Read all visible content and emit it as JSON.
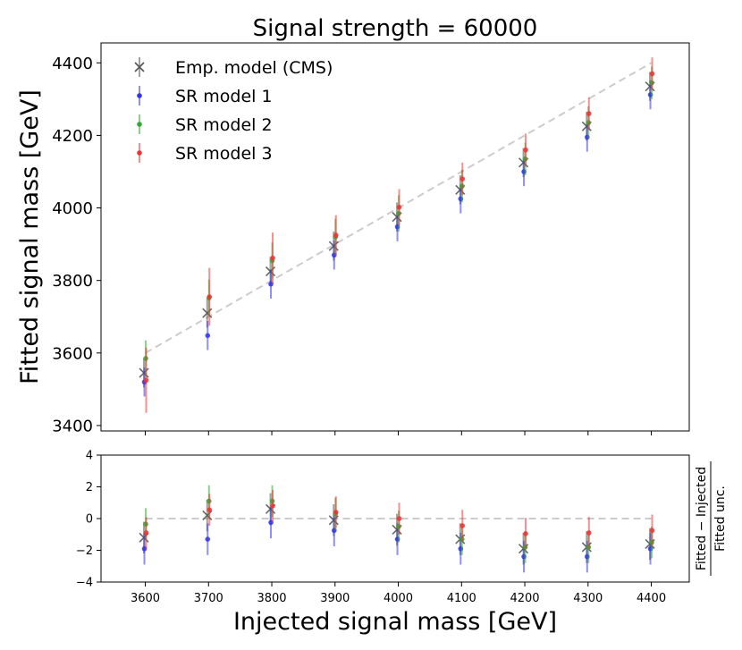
{
  "title": "Signal strength = 60000",
  "colors": {
    "cms": "#555555",
    "sr1": "#3333ee",
    "sr2": "#33aa33",
    "sr3": "#ee3333",
    "ideal": "#cccccc"
  },
  "chart_data": [
    {
      "id": "main",
      "type": "scatter",
      "title": "Signal strength = 60000",
      "xlabel": "",
      "ylabel": "Fitted signal mass [GeV]",
      "xlim": [
        3530,
        4460
      ],
      "ylim": [
        3385,
        4455
      ],
      "xticks": [
        3600,
        3700,
        3800,
        3900,
        4000,
        4100,
        4200,
        4300,
        4400
      ],
      "yticks": [
        3400,
        3600,
        3800,
        4000,
        4200,
        4400
      ],
      "yticklabels": [
        "3400",
        "3600",
        "3800",
        "4000",
        "4200",
        "4400"
      ],
      "legend_position": "top-left",
      "reference_line": {
        "x": [
          3600,
          4400
        ],
        "y": [
          3600,
          4400
        ]
      },
      "x": [
        3600,
        3700,
        3800,
        3900,
        4000,
        4100,
        4200,
        4300,
        4400
      ],
      "series": [
        {
          "name": "Emp. model (CMS)",
          "marker": "x",
          "color_key": "cms",
          "values": [
            3545,
            3710,
            3825,
            3895,
            3975,
            4050,
            4125,
            4225,
            4335
          ],
          "errors": [
            40,
            40,
            40,
            40,
            40,
            40,
            40,
            40,
            40
          ]
        },
        {
          "name": "SR model 1",
          "marker": "o",
          "color_key": "sr1",
          "values": [
            3520,
            3648,
            3790,
            3870,
            3948,
            4025,
            4100,
            4195,
            4312
          ],
          "errors": [
            40,
            40,
            40,
            40,
            40,
            40,
            40,
            40,
            40
          ]
        },
        {
          "name": "SR model 2",
          "marker": "o",
          "color_key": "sr2",
          "values": [
            3585,
            3752,
            3855,
            3920,
            3985,
            4060,
            4135,
            4235,
            4345
          ],
          "errors": [
            50,
            50,
            50,
            50,
            50,
            45,
            45,
            45,
            45
          ]
        },
        {
          "name": "SR model 3",
          "marker": "o",
          "color_key": "sr3",
          "values": [
            3525,
            3755,
            3862,
            3925,
            4002,
            4080,
            4160,
            4260,
            4370
          ],
          "errors": [
            90,
            80,
            70,
            55,
            50,
            45,
            45,
            45,
            45
          ]
        }
      ]
    },
    {
      "id": "ratio",
      "type": "scatter",
      "title": "",
      "xlabel": "Injected signal mass [GeV]",
      "ylabel_numerator": "Fitted − Injected",
      "ylabel_denominator": "Fitted unc.",
      "xlim": [
        3530,
        4460
      ],
      "ylim": [
        -4,
        4
      ],
      "xticks": [
        3600,
        3700,
        3800,
        3900,
        4000,
        4100,
        4200,
        4300,
        4400
      ],
      "xticklabels": [
        "3600",
        "3700",
        "3800",
        "3900",
        "4000",
        "4100",
        "4200",
        "4300",
        "4400"
      ],
      "yticks": [
        -4,
        -2,
        0,
        2,
        4
      ],
      "yticklabels": [
        "−4",
        "−2",
        "0",
        "2",
        "4"
      ],
      "reference_line": {
        "x": [
          3600,
          4400
        ],
        "y": [
          0,
          0
        ]
      },
      "x": [
        3600,
        3700,
        3800,
        3900,
        4000,
        4100,
        4200,
        4300,
        4400
      ],
      "series": [
        {
          "name": "Emp. model (CMS)",
          "marker": "x",
          "color_key": "cms",
          "values": [
            -1.2,
            0.2,
            0.6,
            -0.1,
            -0.7,
            -1.3,
            -1.9,
            -1.8,
            -1.6
          ],
          "errors": [
            1,
            1,
            1,
            1,
            1,
            1,
            1,
            1,
            1
          ]
        },
        {
          "name": "SR model 1",
          "marker": "o",
          "color_key": "sr1",
          "values": [
            -1.9,
            -1.3,
            -0.25,
            -0.75,
            -1.3,
            -1.9,
            -2.4,
            -2.4,
            -1.9
          ],
          "errors": [
            1,
            1,
            1,
            1,
            1,
            1,
            1,
            1,
            1
          ]
        },
        {
          "name": "SR model 2",
          "marker": "o",
          "color_key": "sr2",
          "values": [
            -0.35,
            1.1,
            1.1,
            0.3,
            -0.5,
            -1.3,
            -1.8,
            -1.8,
            -1.5
          ],
          "errors": [
            1,
            1,
            1,
            1,
            1,
            1,
            1,
            1,
            1
          ]
        },
        {
          "name": "SR model 3",
          "marker": "o",
          "color_key": "sr3",
          "values": [
            -0.9,
            0.55,
            0.8,
            0.4,
            0.0,
            -0.45,
            -0.95,
            -0.9,
            -0.75
          ],
          "errors": [
            1,
            1,
            1,
            1,
            1,
            1,
            1,
            1,
            1
          ]
        }
      ]
    }
  ]
}
